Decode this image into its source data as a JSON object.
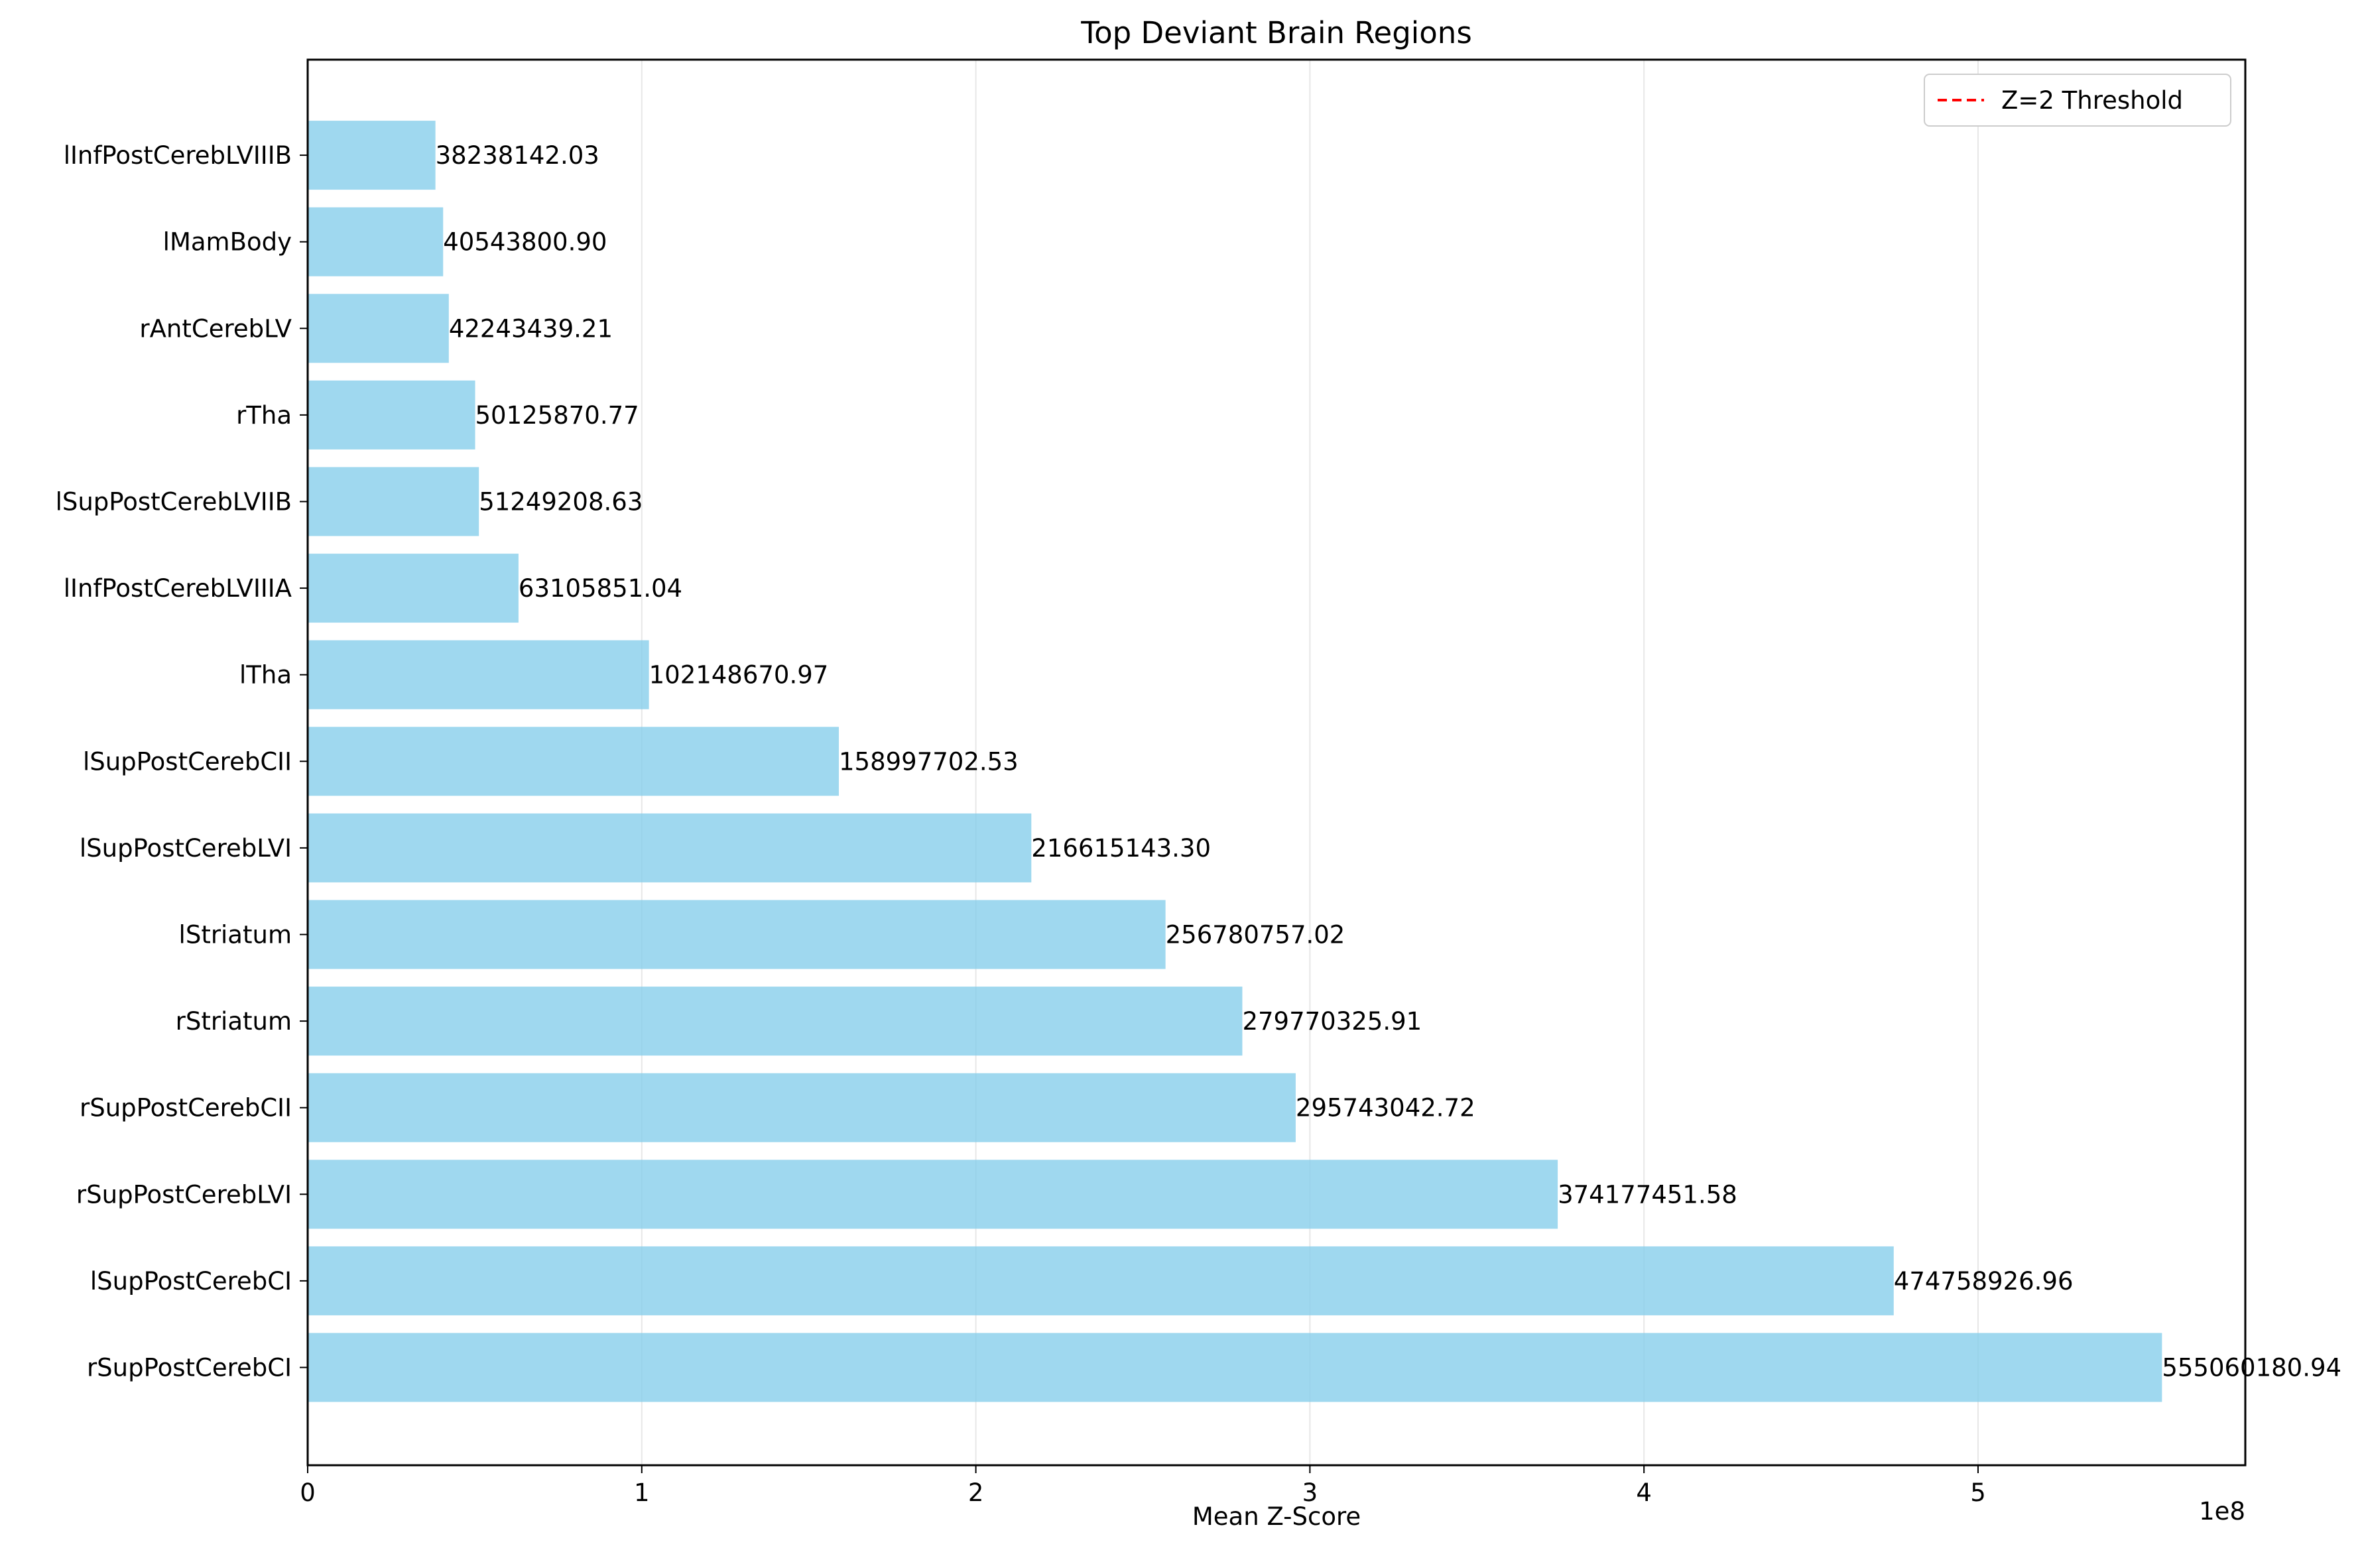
{
  "chart_data": {
    "type": "bar",
    "orientation": "horizontal",
    "title": "Top Deviant Brain Regions",
    "xlabel": "Mean Z-Score",
    "ylabel": "",
    "x_offset_label": "1e8",
    "xlim": [
      0,
      5.8
    ],
    "xticks": [
      0,
      1,
      2,
      3,
      4,
      5
    ],
    "xtick_labels": [
      "0",
      "1",
      "2",
      "3",
      "4",
      "5"
    ],
    "grid": "x",
    "bar_color": "#87ceeb",
    "categories": [
      "rSupPostCerebCI",
      "lSupPostCerebCI",
      "rSupPostCerebLVI",
      "rSupPostCerebCII",
      "rStriatum",
      "lStriatum",
      "lSupPostCerebLVI",
      "lSupPostCerebCII",
      "lTha",
      "lInfPostCerebLVIIIA",
      "lSupPostCerebLVIIB",
      "rTha",
      "rAntCerebLV",
      "lMamBody",
      "lInfPostCerebLVIIIB"
    ],
    "values": [
      555060180.94,
      474758926.96,
      374177451.58,
      295743042.72,
      279770325.91,
      256780757.02,
      216615143.3,
      158997702.53,
      102148670.97,
      63105851.04,
      51249208.63,
      50125870.77,
      42243439.21,
      40543800.9,
      38238142.03
    ],
    "value_labels": [
      "555060180.94",
      "474758926.96",
      "374177451.58",
      "295743042.72",
      "279770325.91",
      "256780757.02",
      "216615143.30",
      "158997702.53",
      "102148670.97",
      "63105851.04",
      "51249208.63",
      "50125870.77",
      "42243439.21",
      "40543800.90",
      "38238142.03"
    ],
    "threshold": {
      "value": 2,
      "label": "Z=2 Threshold",
      "color": "#ff0000",
      "style": "dashed"
    },
    "legend_position": "top-right"
  }
}
